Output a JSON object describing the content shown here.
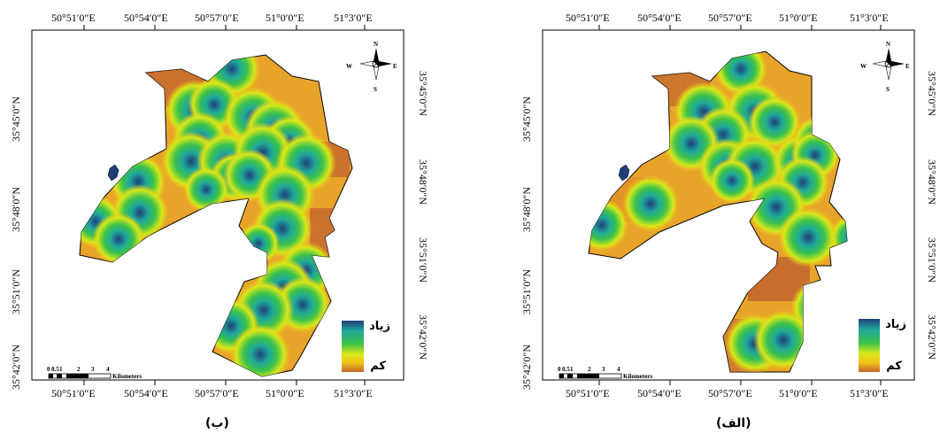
{
  "maps": {
    "left": {
      "caption": "(ب)",
      "top_labels": [
        "50°51′0″E",
        "50°54′0″E",
        "50°57′0″E",
        "51°0′0″E",
        "51°3′0″E"
      ],
      "bottom_labels": [
        "50°51′0″E",
        "50°54′0″E",
        "50°57′0″E",
        "51°0′0″E",
        "51°3′0″E"
      ],
      "left_labels": [
        "35°45′0″N",
        "35°48′0″N",
        "35°51′0″N",
        "35°42′0″N"
      ],
      "right_labels": [
        "35°45′0″N",
        "35°48′0″N",
        "35°51′0″N",
        "35°42′0″N"
      ],
      "legend": {
        "high": "زیاد",
        "low": "کم"
      },
      "scale": {
        "ticks": [
          "0",
          "0.5",
          "1",
          "2",
          "3",
          "4"
        ],
        "unit": "Kilometers"
      },
      "compass": {
        "n": "N",
        "s": "S",
        "e": "E",
        "w": "W"
      }
    },
    "right": {
      "caption": "(الف)",
      "top_labels": [
        "50°51′0″E",
        "50°54′0″E",
        "50°57′0″E",
        "51°0′0″E",
        "51°3′0″E"
      ],
      "bottom_labels": [
        "50°51′0″E",
        "50°54′0″E",
        "50°57′0″E",
        "51°0′0″E",
        "51°3′0″E"
      ],
      "left_labels": [
        "35°45′0″N",
        "35°48′0″N",
        "35°51′0″N",
        "35°42′0″N"
      ],
      "right_labels": [
        "35°45′0″N",
        "35°48′0″N",
        "35°51′0″N",
        "35°42′0″N"
      ],
      "legend": {
        "high": "زیاد",
        "low": "کم"
      },
      "scale": {
        "ticks": [
          "0",
          "0.5",
          "1",
          "2",
          "3",
          "4"
        ],
        "unit": "Kilometers"
      },
      "compass": {
        "n": "N",
        "s": "S",
        "e": "E",
        "w": "W"
      }
    }
  },
  "colors": {
    "high": "#1f3f7a",
    "mid_high": "#1fa89a",
    "mid": "#3cc24a",
    "mid_low": "#d6e81a",
    "low_mid": "#f2c418",
    "low": "#c2652e",
    "frame": "#000000",
    "lake": "#1d3f76"
  }
}
